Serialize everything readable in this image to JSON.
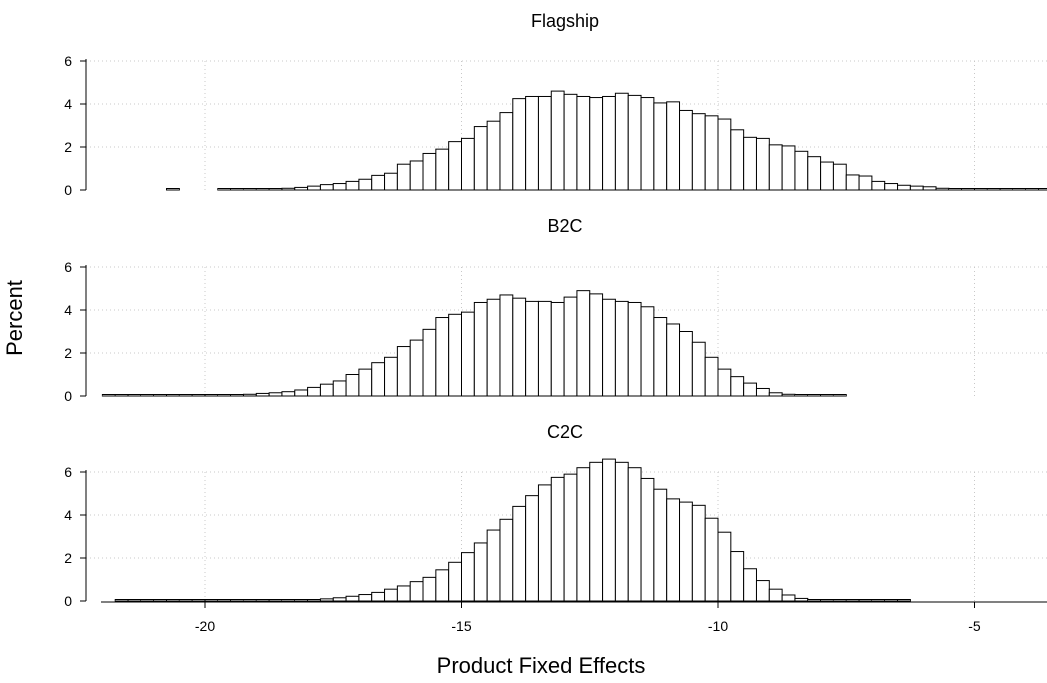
{
  "figure": {
    "ylabel": "Percent",
    "xlabel": "Product Fixed Effects"
  },
  "chart_data": [
    {
      "type": "bar",
      "title": "Flagship",
      "ylim": [
        0,
        6
      ],
      "yticks": [
        0,
        2,
        4,
        6
      ],
      "xlim": [
        -22.5,
        -3.5
      ],
      "xticks": [
        -20,
        -15,
        -10,
        -5
      ],
      "bin_width": 0.25,
      "grid": true,
      "bins": [
        [
          -20.625,
          0.02
        ],
        [
          -19.625,
          0.02
        ],
        [
          -19.375,
          0.02
        ],
        [
          -19.125,
          0.02
        ],
        [
          -18.875,
          0.04
        ],
        [
          -18.625,
          0.05
        ],
        [
          -18.375,
          0.08
        ],
        [
          -18.125,
          0.12
        ],
        [
          -17.875,
          0.18
        ],
        [
          -17.625,
          0.25
        ],
        [
          -17.375,
          0.3
        ],
        [
          -17.125,
          0.4
        ],
        [
          -16.875,
          0.5
        ],
        [
          -16.625,
          0.68
        ],
        [
          -16.375,
          0.78
        ],
        [
          -16.125,
          1.2
        ],
        [
          -15.875,
          1.35
        ],
        [
          -15.625,
          1.7
        ],
        [
          -15.375,
          1.9
        ],
        [
          -15.125,
          2.25
        ],
        [
          -14.875,
          2.4
        ],
        [
          -14.625,
          2.95
        ],
        [
          -14.375,
          3.2
        ],
        [
          -14.125,
          3.6
        ],
        [
          -13.875,
          4.25
        ],
        [
          -13.625,
          4.35
        ],
        [
          -13.375,
          4.35
        ],
        [
          -13.125,
          4.6
        ],
        [
          -12.875,
          4.45
        ],
        [
          -12.625,
          4.35
        ],
        [
          -12.375,
          4.3
        ],
        [
          -12.125,
          4.35
        ],
        [
          -11.875,
          4.5
        ],
        [
          -11.625,
          4.4
        ],
        [
          -11.375,
          4.3
        ],
        [
          -11.125,
          4.05
        ],
        [
          -10.875,
          4.1
        ],
        [
          -10.625,
          3.7
        ],
        [
          -10.375,
          3.55
        ],
        [
          -10.125,
          3.45
        ],
        [
          -9.875,
          3.3
        ],
        [
          -9.625,
          2.8
        ],
        [
          -9.375,
          2.45
        ],
        [
          -9.125,
          2.4
        ],
        [
          -8.875,
          2.1
        ],
        [
          -8.625,
          2.05
        ],
        [
          -8.375,
          1.8
        ],
        [
          -8.125,
          1.55
        ],
        [
          -7.875,
          1.3
        ],
        [
          -7.625,
          1.2
        ],
        [
          -7.375,
          0.7
        ],
        [
          -7.125,
          0.65
        ],
        [
          -6.875,
          0.4
        ],
        [
          -6.625,
          0.3
        ],
        [
          -6.375,
          0.22
        ],
        [
          -6.125,
          0.18
        ],
        [
          -5.875,
          0.15
        ],
        [
          -5.625,
          0.08
        ],
        [
          -5.375,
          0.06
        ],
        [
          -5.125,
          0.04
        ],
        [
          -4.875,
          0.03
        ],
        [
          -4.625,
          0.02
        ],
        [
          -4.375,
          0.02
        ],
        [
          -4.125,
          0.02
        ],
        [
          -3.875,
          0.02
        ],
        [
          -3.625,
          0.02
        ]
      ]
    },
    {
      "type": "bar",
      "title": "B2C",
      "ylim": [
        0,
        6
      ],
      "yticks": [
        0,
        2,
        4,
        6
      ],
      "xlim": [
        -22.5,
        -3.5
      ],
      "xticks": [
        -20,
        -15,
        -10,
        -5
      ],
      "bin_width": 0.25,
      "grid": true,
      "bins": [
        [
          -21.875,
          0.02
        ],
        [
          -21.625,
          0.02
        ],
        [
          -21.375,
          0.02
        ],
        [
          -21.125,
          0.02
        ],
        [
          -20.875,
          0.02
        ],
        [
          -20.625,
          0.02
        ],
        [
          -20.375,
          0.02
        ],
        [
          -20.125,
          0.02
        ],
        [
          -19.875,
          0.02
        ],
        [
          -19.625,
          0.03
        ],
        [
          -19.375,
          0.05
        ],
        [
          -19.125,
          0.08
        ],
        [
          -18.875,
          0.12
        ],
        [
          -18.625,
          0.15
        ],
        [
          -18.375,
          0.2
        ],
        [
          -18.125,
          0.28
        ],
        [
          -17.875,
          0.4
        ],
        [
          -17.625,
          0.55
        ],
        [
          -17.375,
          0.7
        ],
        [
          -17.125,
          1.0
        ],
        [
          -16.875,
          1.25
        ],
        [
          -16.625,
          1.55
        ],
        [
          -16.375,
          1.8
        ],
        [
          -16.125,
          2.3
        ],
        [
          -15.875,
          2.6
        ],
        [
          -15.625,
          3.1
        ],
        [
          -15.375,
          3.65
        ],
        [
          -15.125,
          3.8
        ],
        [
          -14.875,
          3.9
        ],
        [
          -14.625,
          4.35
        ],
        [
          -14.375,
          4.5
        ],
        [
          -14.125,
          4.7
        ],
        [
          -13.875,
          4.55
        ],
        [
          -13.625,
          4.4
        ],
        [
          -13.375,
          4.4
        ],
        [
          -13.125,
          4.35
        ],
        [
          -12.875,
          4.6
        ],
        [
          -12.625,
          4.9
        ],
        [
          -12.375,
          4.75
        ],
        [
          -12.125,
          4.5
        ],
        [
          -11.875,
          4.4
        ],
        [
          -11.625,
          4.35
        ],
        [
          -11.375,
          4.15
        ],
        [
          -11.125,
          3.65
        ],
        [
          -10.875,
          3.35
        ],
        [
          -10.625,
          3.0
        ],
        [
          -10.375,
          2.5
        ],
        [
          -10.125,
          1.8
        ],
        [
          -9.875,
          1.25
        ],
        [
          -9.625,
          0.9
        ],
        [
          -9.375,
          0.6
        ],
        [
          -9.125,
          0.35
        ],
        [
          -8.875,
          0.15
        ],
        [
          -8.625,
          0.08
        ],
        [
          -8.375,
          0.04
        ],
        [
          -8.125,
          0.02
        ],
        [
          -7.875,
          0.02
        ],
        [
          -7.625,
          0.02
        ]
      ]
    },
    {
      "type": "bar",
      "title": "C2C",
      "ylim": [
        0,
        6.6
      ],
      "yticks": [
        0,
        2,
        4,
        6
      ],
      "xlim": [
        -22.5,
        -3.5
      ],
      "xticks": [
        -20,
        -15,
        -10,
        -5
      ],
      "bin_width": 0.25,
      "grid": true,
      "bins": [
        [
          -21.625,
          0.02
        ],
        [
          -21.375,
          0.02
        ],
        [
          -21.125,
          0.02
        ],
        [
          -20.875,
          0.02
        ],
        [
          -20.625,
          0.02
        ],
        [
          -20.375,
          0.02
        ],
        [
          -20.125,
          0.02
        ],
        [
          -19.875,
          0.02
        ],
        [
          -19.625,
          0.02
        ],
        [
          -19.375,
          0.02
        ],
        [
          -19.125,
          0.02
        ],
        [
          -18.875,
          0.02
        ],
        [
          -18.625,
          0.02
        ],
        [
          -18.375,
          0.02
        ],
        [
          -18.125,
          0.04
        ],
        [
          -17.875,
          0.06
        ],
        [
          -17.625,
          0.1
        ],
        [
          -17.375,
          0.15
        ],
        [
          -17.125,
          0.22
        ],
        [
          -16.875,
          0.3
        ],
        [
          -16.625,
          0.4
        ],
        [
          -16.375,
          0.55
        ],
        [
          -16.125,
          0.7
        ],
        [
          -15.875,
          0.9
        ],
        [
          -15.625,
          1.1
        ],
        [
          -15.375,
          1.45
        ],
        [
          -15.125,
          1.8
        ],
        [
          -14.875,
          2.25
        ],
        [
          -14.625,
          2.7
        ],
        [
          -14.375,
          3.3
        ],
        [
          -14.125,
          3.8
        ],
        [
          -13.875,
          4.4
        ],
        [
          -13.625,
          4.9
        ],
        [
          -13.375,
          5.4
        ],
        [
          -13.125,
          5.75
        ],
        [
          -12.875,
          5.9
        ],
        [
          -12.625,
          6.2
        ],
        [
          -12.375,
          6.45
        ],
        [
          -12.125,
          6.6
        ],
        [
          -11.875,
          6.45
        ],
        [
          -11.625,
          6.2
        ],
        [
          -11.375,
          5.7
        ],
        [
          -11.125,
          5.2
        ],
        [
          -10.875,
          4.75
        ],
        [
          -10.625,
          4.6
        ],
        [
          -10.375,
          4.45
        ],
        [
          -10.125,
          3.85
        ],
        [
          -9.875,
          3.2
        ],
        [
          -9.625,
          2.3
        ],
        [
          -9.375,
          1.5
        ],
        [
          -9.125,
          0.95
        ],
        [
          -8.875,
          0.55
        ],
        [
          -8.625,
          0.28
        ],
        [
          -8.375,
          0.12
        ],
        [
          -8.125,
          0.05
        ],
        [
          -7.875,
          0.02
        ],
        [
          -7.625,
          0.02
        ],
        [
          -7.375,
          0.02
        ],
        [
          -7.125,
          0.02
        ],
        [
          -6.875,
          0.02
        ],
        [
          -6.625,
          0.02
        ],
        [
          -6.375,
          0.02
        ]
      ]
    }
  ]
}
